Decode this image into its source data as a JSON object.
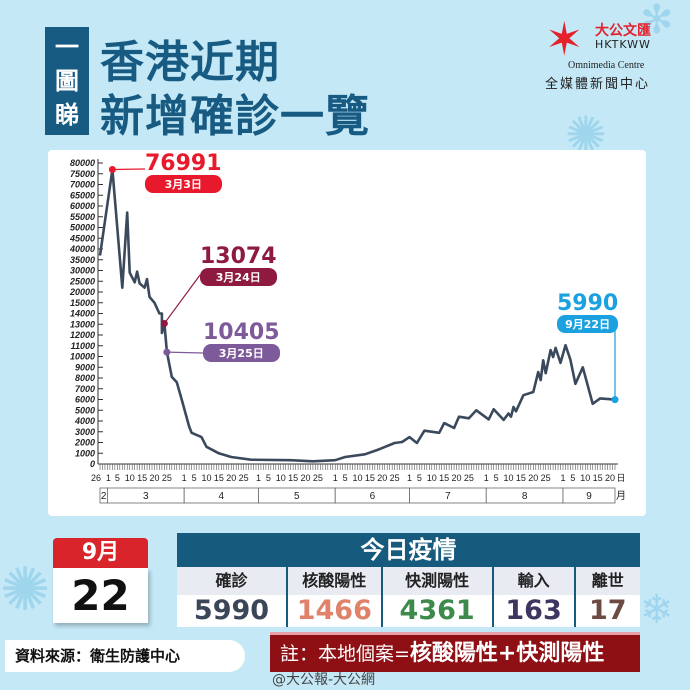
{
  "header": {
    "badge": [
      "一",
      "圖",
      "睇"
    ],
    "title_line1": "香港近期",
    "title_line2": "新增確診一覽"
  },
  "logo": {
    "cn": "大公文匯",
    "en": "HKTKWW",
    "sub_en": "Omnimedia Centre",
    "sub_cn": "全媒體新聞中心"
  },
  "colors": {
    "line": "#3a4a5c",
    "peak": "#e8192c",
    "mar24": "#8e1b3f",
    "mar25": "#7d5a9a",
    "latest": "#1ba0e0",
    "header_bg": "#165b7e"
  },
  "chart_data": {
    "type": "line",
    "y_ticks": [
      0,
      1000,
      2000,
      3000,
      4000,
      5000,
      6000,
      7000,
      8000,
      9000,
      10000,
      11000,
      12000,
      13000,
      14000,
      15000,
      20000,
      25000,
      30000,
      35000,
      40000,
      45000,
      50000,
      55000,
      60000,
      65000,
      70000,
      75000,
      80000
    ],
    "y_scale": "non-linear: 1000 steps up to 15000, 5000 steps above",
    "ylim": [
      0,
      80000
    ],
    "x_day_labels": [
      "26",
      "1",
      "5",
      "10",
      "15",
      "20",
      "25",
      "1",
      "5",
      "10",
      "15",
      "20",
      "25",
      "1",
      "5",
      "10",
      "15",
      "20",
      "25",
      "1",
      "5",
      "10",
      "15",
      "20",
      "25",
      "1",
      "5",
      "10",
      "15",
      "20",
      "25",
      "1",
      "5",
      "10",
      "15",
      "20",
      "25",
      "1",
      "5",
      "10",
      "15",
      "20",
      "日"
    ],
    "x_day_label_dates": [
      "2/26",
      "3/1",
      "3/5",
      "3/10",
      "3/15",
      "3/20",
      "3/25",
      "4/1",
      "4/5",
      "4/10",
      "4/15",
      "4/20",
      "4/25",
      "5/1",
      "5/5",
      "5/10",
      "5/15",
      "5/20",
      "5/25",
      "6/1",
      "6/5",
      "6/10",
      "6/15",
      "6/20",
      "6/25",
      "7/1",
      "7/5",
      "7/10",
      "7/15",
      "7/20",
      "7/25",
      "8/1",
      "8/5",
      "8/10",
      "8/15",
      "8/20",
      "8/25",
      "9/1",
      "9/5",
      "9/10",
      "9/15",
      "9/20",
      null
    ],
    "months": [
      "2",
      "3",
      "4",
      "5",
      "6",
      "7",
      "8",
      "9",
      "月"
    ],
    "series": [
      {
        "points": [
          [
            "2/26",
            37000
          ],
          [
            "3/3",
            76991
          ],
          [
            "3/7",
            22000
          ],
          [
            "3/9",
            57000
          ],
          [
            "3/10",
            29000
          ],
          [
            "3/12",
            24500
          ],
          [
            "3/13",
            29500
          ],
          [
            "3/14",
            24000
          ],
          [
            "3/16",
            22000
          ],
          [
            "3/17",
            26000
          ],
          [
            "3/18",
            17700
          ],
          [
            "3/20",
            15000
          ],
          [
            "3/22",
            14000
          ],
          [
            "3/23",
            14000
          ],
          [
            "3/23",
            12200
          ],
          [
            "3/24",
            13074
          ],
          [
            "3/25",
            10405
          ],
          [
            "3/27",
            8100
          ],
          [
            "3/29",
            7600
          ],
          [
            "3/31",
            6000
          ],
          [
            "4/3",
            3500
          ],
          [
            "4/4",
            2900
          ],
          [
            "4/8",
            2500
          ],
          [
            "4/10",
            1600
          ],
          [
            "4/15",
            1000
          ],
          [
            "4/20",
            650
          ],
          [
            "4/28",
            400
          ],
          [
            "5/14",
            350
          ],
          [
            "5/23",
            250
          ],
          [
            "6/1",
            350
          ],
          [
            "6/5",
            650
          ],
          [
            "6/13",
            900
          ],
          [
            "6/18",
            1300
          ],
          [
            "6/25",
            1950
          ],
          [
            "6/28",
            2050
          ],
          [
            "7/1",
            2500
          ],
          [
            "7/4",
            1950
          ],
          [
            "7/7",
            3100
          ],
          [
            "7/13",
            2900
          ],
          [
            "7/15",
            3800
          ],
          [
            "7/19",
            3350
          ],
          [
            "7/21",
            4400
          ],
          [
            "7/25",
            4250
          ],
          [
            "7/28",
            5000
          ],
          [
            "8/2",
            4150
          ],
          [
            "8/4",
            5100
          ],
          [
            "8/8",
            4100
          ],
          [
            "8/10",
            4700
          ],
          [
            "8/11",
            4400
          ],
          [
            "8/12",
            5300
          ],
          [
            "8/13",
            4900
          ],
          [
            "8/16",
            6400
          ],
          [
            "8/20",
            6700
          ],
          [
            "8/22",
            8550
          ],
          [
            "8/23",
            7800
          ],
          [
            "8/24",
            9650
          ],
          [
            "8/25",
            8450
          ],
          [
            "8/27",
            10600
          ],
          [
            "8/28",
            9950
          ],
          [
            "8/29",
            10800
          ],
          [
            "8/31",
            9400
          ],
          [
            "9/2",
            11050
          ],
          [
            "9/4",
            9700
          ],
          [
            "9/6",
            7450
          ],
          [
            "9/9",
            9000
          ],
          [
            "9/13",
            5600
          ],
          [
            "9/16",
            6100
          ],
          [
            "9/22",
            5990
          ]
        ]
      }
    ],
    "annotations": [
      {
        "value": "76991",
        "date": "3月3日",
        "x": "3/3",
        "y": 76991
      },
      {
        "value": "13074",
        "date": "3月24日",
        "x": "3/24",
        "y": 13074
      },
      {
        "value": "10405",
        "date": "3月25日",
        "x": "3/25",
        "y": 10405
      },
      {
        "value": "5990",
        "date": "9月22日",
        "x": "9/22",
        "y": 5990
      }
    ]
  },
  "calendar": {
    "month": "9月",
    "day": "22"
  },
  "today": {
    "title": "今日疫情",
    "columns": [
      {
        "label": "確診",
        "value": "5990",
        "color": "#3b4658"
      },
      {
        "label": "核酸陽性",
        "value": "1466",
        "color": "#e0826a"
      },
      {
        "label": "快測陽性",
        "value": "4361",
        "color": "#3d8a4b"
      },
      {
        "label": "輸入",
        "value": "163",
        "color": "#3f3560"
      },
      {
        "label": "離世",
        "value": "17",
        "color": "#6d4b42"
      }
    ]
  },
  "source": "資料來源：衛生防護中心",
  "note": {
    "prefix": "註：本地個案=",
    "formula": "核酸陽性+快測陽性"
  },
  "watermark": "@大公報-大公網"
}
